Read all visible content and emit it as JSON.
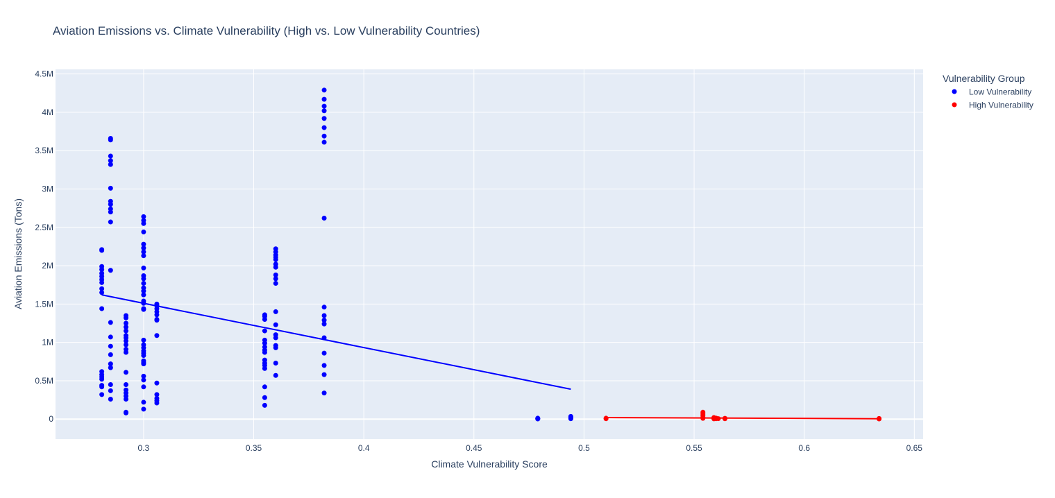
{
  "chart_data": {
    "type": "scatter",
    "title": "Aviation Emissions vs. Climate Vulnerability (High vs. Low Vulnerability Countries)",
    "xlabel": "Climate Vulnerability Score",
    "ylabel": "Aviation Emissions (Tons)",
    "xlim": [
      0.26,
      0.654
    ],
    "ylim": [
      -260000,
      4560000
    ],
    "x_ticks": [
      0.3,
      0.35,
      0.4,
      0.45,
      0.5,
      0.55,
      0.6,
      0.65
    ],
    "x_tick_labels": [
      "0.3",
      "0.35",
      "0.4",
      "0.45",
      "0.5",
      "0.55",
      "0.6",
      "0.65"
    ],
    "y_ticks": [
      0,
      500000,
      1000000,
      1500000,
      2000000,
      2500000,
      3000000,
      3500000,
      4000000,
      4500000
    ],
    "y_tick_labels": [
      "0",
      "0.5M",
      "1M",
      "1.5M",
      "2M",
      "2.5M",
      "3M",
      "3.5M",
      "4M",
      "4.5M"
    ],
    "grid": true,
    "legend": {
      "title": "Vulnerability Group",
      "placement": "top-right, outside plot",
      "entries": [
        "Low Vulnerability",
        "High Vulnerability"
      ]
    },
    "colors": {
      "low": "#0000ff",
      "high": "#ff0000",
      "plot_bg": "#e5ecf6",
      "grid": "#ffffff",
      "text": "#2a3f5f"
    },
    "series": [
      {
        "name": "Low Vulnerability",
        "color": "#0000ff",
        "points": [
          [
            0.281,
            320000
          ],
          [
            0.281,
            420000
          ],
          [
            0.281,
            440000
          ],
          [
            0.281,
            520000
          ],
          [
            0.281,
            550000
          ],
          [
            0.281,
            580000
          ],
          [
            0.281,
            620000
          ],
          [
            0.281,
            1440000
          ],
          [
            0.281,
            1650000
          ],
          [
            0.281,
            1700000
          ],
          [
            0.281,
            1780000
          ],
          [
            0.281,
            1820000
          ],
          [
            0.281,
            1860000
          ],
          [
            0.281,
            1900000
          ],
          [
            0.281,
            1950000
          ],
          [
            0.281,
            1990000
          ],
          [
            0.281,
            2200000
          ],
          [
            0.281,
            2210000
          ],
          [
            0.285,
            260000
          ],
          [
            0.285,
            370000
          ],
          [
            0.285,
            450000
          ],
          [
            0.285,
            670000
          ],
          [
            0.285,
            720000
          ],
          [
            0.285,
            840000
          ],
          [
            0.285,
            950000
          ],
          [
            0.285,
            1070000
          ],
          [
            0.285,
            1260000
          ],
          [
            0.285,
            1940000
          ],
          [
            0.285,
            2570000
          ],
          [
            0.285,
            2700000
          ],
          [
            0.285,
            2740000
          ],
          [
            0.285,
            2800000
          ],
          [
            0.285,
            2840000
          ],
          [
            0.285,
            3010000
          ],
          [
            0.285,
            3320000
          ],
          [
            0.285,
            3370000
          ],
          [
            0.285,
            3430000
          ],
          [
            0.285,
            3640000
          ],
          [
            0.285,
            3660000
          ],
          [
            0.292,
            80000
          ],
          [
            0.292,
            90000
          ],
          [
            0.292,
            260000
          ],
          [
            0.292,
            300000
          ],
          [
            0.292,
            340000
          ],
          [
            0.292,
            380000
          ],
          [
            0.292,
            450000
          ],
          [
            0.292,
            610000
          ],
          [
            0.292,
            870000
          ],
          [
            0.292,
            910000
          ],
          [
            0.292,
            970000
          ],
          [
            0.292,
            1020000
          ],
          [
            0.292,
            1060000
          ],
          [
            0.292,
            1090000
          ],
          [
            0.292,
            1150000
          ],
          [
            0.292,
            1200000
          ],
          [
            0.292,
            1250000
          ],
          [
            0.292,
            1320000
          ],
          [
            0.292,
            1350000
          ],
          [
            0.3,
            130000
          ],
          [
            0.3,
            220000
          ],
          [
            0.3,
            420000
          ],
          [
            0.3,
            510000
          ],
          [
            0.3,
            560000
          ],
          [
            0.3,
            720000
          ],
          [
            0.3,
            740000
          ],
          [
            0.3,
            760000
          ],
          [
            0.3,
            830000
          ],
          [
            0.3,
            860000
          ],
          [
            0.3,
            890000
          ],
          [
            0.3,
            930000
          ],
          [
            0.3,
            970000
          ],
          [
            0.3,
            1030000
          ],
          [
            0.3,
            1430000
          ],
          [
            0.3,
            1440000
          ],
          [
            0.3,
            1510000
          ],
          [
            0.3,
            1540000
          ],
          [
            0.3,
            1620000
          ],
          [
            0.3,
            1670000
          ],
          [
            0.3,
            1710000
          ],
          [
            0.3,
            1770000
          ],
          [
            0.3,
            1830000
          ],
          [
            0.3,
            1870000
          ],
          [
            0.3,
            1970000
          ],
          [
            0.3,
            2130000
          ],
          [
            0.3,
            2180000
          ],
          [
            0.3,
            2230000
          ],
          [
            0.3,
            2280000
          ],
          [
            0.3,
            2440000
          ],
          [
            0.3,
            2550000
          ],
          [
            0.3,
            2590000
          ],
          [
            0.3,
            2640000
          ],
          [
            0.306,
            210000
          ],
          [
            0.306,
            240000
          ],
          [
            0.306,
            270000
          ],
          [
            0.306,
            320000
          ],
          [
            0.306,
            470000
          ],
          [
            0.306,
            1090000
          ],
          [
            0.306,
            1290000
          ],
          [
            0.306,
            1300000
          ],
          [
            0.306,
            1360000
          ],
          [
            0.306,
            1400000
          ],
          [
            0.306,
            1440000
          ],
          [
            0.306,
            1480000
          ],
          [
            0.306,
            1500000
          ],
          [
            0.355,
            180000
          ],
          [
            0.355,
            280000
          ],
          [
            0.355,
            420000
          ],
          [
            0.355,
            660000
          ],
          [
            0.355,
            700000
          ],
          [
            0.355,
            730000
          ],
          [
            0.355,
            770000
          ],
          [
            0.355,
            870000
          ],
          [
            0.355,
            900000
          ],
          [
            0.355,
            940000
          ],
          [
            0.355,
            990000
          ],
          [
            0.355,
            1030000
          ],
          [
            0.355,
            1150000
          ],
          [
            0.355,
            1300000
          ],
          [
            0.355,
            1340000
          ],
          [
            0.355,
            1360000
          ],
          [
            0.36,
            570000
          ],
          [
            0.36,
            730000
          ],
          [
            0.36,
            930000
          ],
          [
            0.36,
            960000
          ],
          [
            0.36,
            1060000
          ],
          [
            0.36,
            1100000
          ],
          [
            0.36,
            1230000
          ],
          [
            0.36,
            1400000
          ],
          [
            0.36,
            1770000
          ],
          [
            0.36,
            1830000
          ],
          [
            0.36,
            1880000
          ],
          [
            0.36,
            1980000
          ],
          [
            0.36,
            2020000
          ],
          [
            0.36,
            2080000
          ],
          [
            0.36,
            2110000
          ],
          [
            0.36,
            2140000
          ],
          [
            0.36,
            2180000
          ],
          [
            0.36,
            2220000
          ],
          [
            0.382,
            340000
          ],
          [
            0.382,
            580000
          ],
          [
            0.382,
            700000
          ],
          [
            0.382,
            860000
          ],
          [
            0.382,
            1060000
          ],
          [
            0.382,
            1240000
          ],
          [
            0.382,
            1290000
          ],
          [
            0.382,
            1350000
          ],
          [
            0.382,
            1460000
          ],
          [
            0.382,
            2620000
          ],
          [
            0.382,
            3610000
          ],
          [
            0.382,
            3690000
          ],
          [
            0.382,
            3800000
          ],
          [
            0.382,
            3920000
          ],
          [
            0.382,
            4020000
          ],
          [
            0.382,
            4080000
          ],
          [
            0.382,
            4170000
          ],
          [
            0.382,
            4290000
          ],
          [
            0.479,
            2000
          ],
          [
            0.479,
            5000
          ],
          [
            0.479,
            8000
          ],
          [
            0.479,
            12000
          ],
          [
            0.494,
            5000
          ],
          [
            0.494,
            15000
          ],
          [
            0.494,
            25000
          ],
          [
            0.494,
            35000
          ]
        ],
        "trendline": [
          [
            0.281,
            1620000
          ],
          [
            0.494,
            390000
          ]
        ]
      },
      {
        "name": "High Vulnerability",
        "color": "#ff0000",
        "points": [
          [
            0.51,
            5000
          ],
          [
            0.51,
            12000
          ],
          [
            0.554,
            10000
          ],
          [
            0.554,
            25000
          ],
          [
            0.554,
            45000
          ],
          [
            0.554,
            65000
          ],
          [
            0.554,
            90000
          ],
          [
            0.559,
            3000
          ],
          [
            0.559,
            10000
          ],
          [
            0.559,
            20000
          ],
          [
            0.56,
            5000
          ],
          [
            0.56,
            12000
          ],
          [
            0.561,
            6000
          ],
          [
            0.564,
            4000
          ],
          [
            0.564,
            10000
          ],
          [
            0.634,
            2000
          ],
          [
            0.634,
            8000
          ]
        ],
        "trendline": [
          [
            0.51,
            20000
          ],
          [
            0.634,
            5000
          ]
        ]
      }
    ]
  }
}
